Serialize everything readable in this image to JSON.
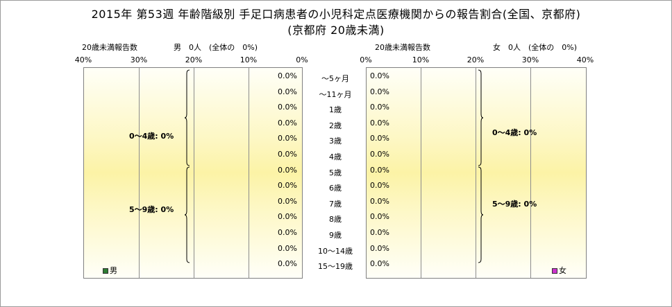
{
  "title_line1": "2015年 第53週 年齢階級別 手足口病患者の小児科定点医療機関からの報告割合(全国、京都府)",
  "title_line2": "(京都府 20歳未満)",
  "left": {
    "report_label": "20歳未満報告数",
    "count_label": "男　0人　(全体の　0%)",
    "ticks": [
      "40%",
      "30%",
      "20%",
      "10%",
      "0%"
    ],
    "group_labels": [
      "0～4歳: 0%",
      "5～9歳: 0%"
    ],
    "legend": "男",
    "legend_color": "#2e7d32"
  },
  "right": {
    "report_label": "20歳未満報告数",
    "count_label": "女　0人　(全体の　0%)",
    "ticks": [
      "0%",
      "10%",
      "20%",
      "30%",
      "40%"
    ],
    "group_labels": [
      "0～4歳: 0%",
      "5～9歳: 0%"
    ],
    "legend": "女",
    "legend_color": "#cc33cc"
  },
  "chart_data": {
    "type": "bar",
    "orientation": "horizontal",
    "layout": "population-pyramid",
    "categories": [
      "～5ヶ月",
      "～11ヶ月",
      "1歳",
      "2歳",
      "3歳",
      "4歳",
      "5歳",
      "6歳",
      "7歳",
      "8歳",
      "9歳",
      "10～14歳",
      "15～19歳"
    ],
    "series": [
      {
        "name": "男",
        "values": [
          0,
          0,
          0,
          0,
          0,
          0,
          0,
          0,
          0,
          0,
          0,
          0,
          0
        ],
        "labels": [
          "0.0%",
          "0.0%",
          "0.0%",
          "0.0%",
          "0.0%",
          "0.0%",
          "0.0%",
          "0.0%",
          "0.0%",
          "0.0%",
          "0.0%",
          "0.0%",
          "0.0%"
        ]
      },
      {
        "name": "女",
        "values": [
          0,
          0,
          0,
          0,
          0,
          0,
          0,
          0,
          0,
          0,
          0,
          0,
          0
        ],
        "labels": [
          "0.0%",
          "0.0%",
          "0.0%",
          "0.0%",
          "0.0%",
          "0.0%",
          "0.0%",
          "0.0%",
          "0.0%",
          "0.0%",
          "0.0%",
          "0.0%",
          "0.0%"
        ]
      }
    ],
    "xlim": [
      0,
      40
    ],
    "grid": true
  }
}
